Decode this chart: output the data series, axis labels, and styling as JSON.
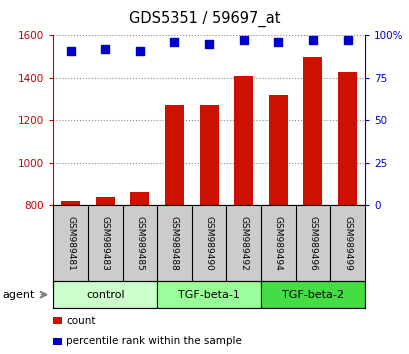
{
  "title": "GDS5351 / 59697_at",
  "samples": [
    "GSM989481",
    "GSM989483",
    "GSM989485",
    "GSM989488",
    "GSM989490",
    "GSM989492",
    "GSM989494",
    "GSM989496",
    "GSM989499"
  ],
  "counts": [
    820,
    840,
    865,
    1270,
    1270,
    1410,
    1320,
    1500,
    1430
  ],
  "percentiles": [
    91,
    92,
    91,
    96,
    95,
    97,
    96,
    97,
    97
  ],
  "groups": [
    {
      "label": "control",
      "indices": [
        0,
        1,
        2
      ],
      "color_light": "#ccffcc",
      "color_dark": "#ccffcc"
    },
    {
      "label": "TGF-beta-1",
      "indices": [
        3,
        4,
        5
      ],
      "color_light": "#99ff99",
      "color_dark": "#66ff66"
    },
    {
      "label": "TGF-beta-2",
      "indices": [
        6,
        7,
        8
      ],
      "color_light": "#44dd44",
      "color_dark": "#33cc33"
    }
  ],
  "bar_color": "#cc1100",
  "dot_color": "#0000cc",
  "ylim_left": [
    800,
    1600
  ],
  "ylim_right": [
    0,
    100
  ],
  "yticks_left": [
    800,
    1000,
    1200,
    1400,
    1600
  ],
  "yticks_right": [
    0,
    25,
    50,
    75,
    100
  ],
  "ytick_labels_right": [
    "0",
    "25",
    "50",
    "75",
    "100%"
  ],
  "background_color": "#ffffff",
  "grid_color": "#888888",
  "left_axis_color": "#cc0000",
  "right_axis_color": "#0000cc",
  "bar_width": 0.55,
  "dot_size": 40,
  "sample_bg": "#cccccc",
  "legend_items": [
    {
      "color": "#cc1100",
      "label": "count"
    },
    {
      "color": "#0000cc",
      "label": "percentile rank within the sample"
    }
  ]
}
